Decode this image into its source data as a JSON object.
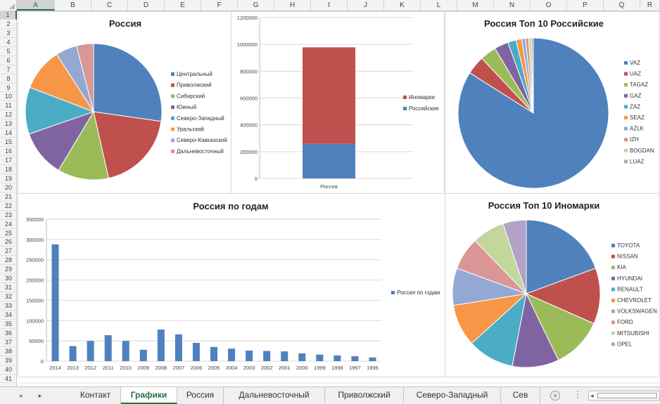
{
  "columns": [
    "A",
    "B",
    "C",
    "D",
    "E",
    "F",
    "G",
    "H",
    "I",
    "J",
    "K",
    "L",
    "M",
    "N",
    "O",
    "P",
    "Q",
    "R"
  ],
  "selected_column": "A",
  "rows": [
    "1",
    "2",
    "3",
    "4",
    "5",
    "6",
    "7",
    "8",
    "9",
    "10",
    "11",
    "12",
    "13",
    "14",
    "15",
    "16",
    "17",
    "18",
    "19",
    "20",
    "21",
    "22",
    "23",
    "24",
    "25",
    "26",
    "27",
    "28",
    "29",
    "30",
    "31",
    "32",
    "33",
    "34",
    "35",
    "36",
    "37",
    "38",
    "39",
    "40",
    "41"
  ],
  "selected_row": "1",
  "tabs": [
    {
      "label": "Контакт",
      "active": false
    },
    {
      "label": "Графики",
      "active": true
    },
    {
      "label": "Россия",
      "active": false
    },
    {
      "label": "Дальневосточный",
      "active": false
    },
    {
      "label": "Приволжский",
      "active": false
    },
    {
      "label": "Северо-Западный",
      "active": false
    },
    {
      "label": "Сев",
      "active": false
    }
  ],
  "tab_nav": {
    "prev": "◂",
    "next": "▸",
    "add": "+",
    "more": "⋮",
    "scroll_left": "◂"
  },
  "chart_data": [
    {
      "type": "pie",
      "title": "Россия",
      "categories": [
        "Центральный",
        "Приволжский",
        "Сибирский",
        "Южный",
        "Северо-Западный",
        "Уральский",
        "Северо-Кавказский",
        "Дальневосточный"
      ],
      "values": [
        27,
        19,
        12,
        11,
        11,
        10,
        5,
        4
      ],
      "colors": [
        "#4f81bd",
        "#c0504d",
        "#9bbb59",
        "#8064a2",
        "#4bacc6",
        "#f79646",
        "#93a9d4",
        "#d99694"
      ],
      "legend": "right"
    },
    {
      "type": "bar",
      "stacked": true,
      "title": "",
      "categories": [
        "Россия"
      ],
      "series": [
        {
          "name": "Российские",
          "values": [
            258000
          ],
          "color": "#4f81bd"
        },
        {
          "name": "Иномарки",
          "values": [
            720000
          ],
          "color": "#c0504d"
        }
      ],
      "legend_order": [
        "Иномарки",
        "Российские"
      ],
      "ylim": [
        0,
        1200000
      ],
      "yticks": [
        0,
        200000,
        400000,
        600000,
        800000,
        1000000,
        1200000
      ],
      "grid": true,
      "legend": "right"
    },
    {
      "type": "pie",
      "title": "Россия Топ 10 Российские",
      "categories": [
        "VAZ",
        "UAZ",
        "TAGAZ",
        "GAZ",
        "ZAZ",
        "SEAZ",
        "AZLK",
        "IZH",
        "BOGDAN",
        "LUAZ"
      ],
      "values": [
        84,
        4,
        3.5,
        3,
        1.8,
        1.2,
        0.8,
        0.7,
        0.6,
        0.4
      ],
      "colors": [
        "#4f81bd",
        "#c0504d",
        "#9bbb59",
        "#8064a2",
        "#4bacc6",
        "#f79646",
        "#93a9d4",
        "#d99694",
        "#c3d69b",
        "#b2a2c7"
      ],
      "legend": "right"
    },
    {
      "type": "bar",
      "title": "Россия по годам",
      "categories": [
        "2014",
        "2013",
        "2012",
        "2011",
        "2010",
        "2009",
        "2008",
        "2007",
        "2006",
        "2005",
        "2004",
        "2003",
        "2002",
        "2001",
        "2000",
        "1999",
        "1998",
        "1997",
        "1996"
      ],
      "series": [
        {
          "name": "Россия по годам",
          "values": [
            288000,
            37000,
            50000,
            64000,
            50000,
            28000,
            78000,
            66000,
            45000,
            35000,
            31000,
            26000,
            25000,
            24000,
            19000,
            16000,
            14000,
            12000,
            9000
          ],
          "color": "#4f81bd"
        }
      ],
      "ylim": [
        0,
        350000
      ],
      "yticks": [
        0,
        50000,
        100000,
        150000,
        200000,
        250000,
        300000,
        350000
      ],
      "grid": true,
      "legend": "right"
    },
    {
      "type": "pie",
      "title": "Россия Топ 10 Иномарки",
      "categories": [
        "TOYOTA",
        "NISSAN",
        "KIA",
        "HYUNDAI",
        "RENAULT",
        "CHEVROLET",
        "VOLKSWAGEN",
        "FORD",
        "MITSUBISHI",
        "OPEL"
      ],
      "values": [
        19,
        12,
        11,
        10,
        10,
        9,
        8,
        7,
        7,
        5
      ],
      "colors": [
        "#4f81bd",
        "#c0504d",
        "#9bbb59",
        "#8064a2",
        "#4bacc6",
        "#f79646",
        "#93a9d4",
        "#d99694",
        "#c3d69b",
        "#b2a2c7"
      ],
      "legend": "right"
    }
  ]
}
